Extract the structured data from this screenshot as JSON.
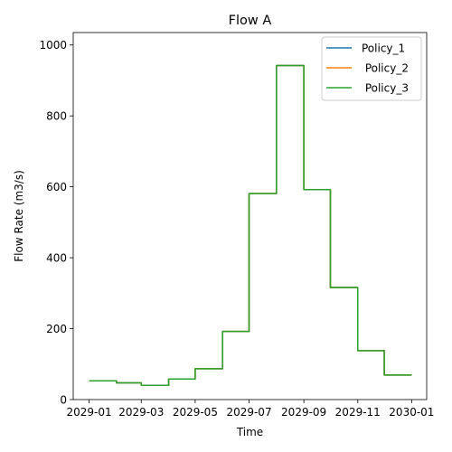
{
  "chart_data": {
    "type": "line",
    "title": "Flow A",
    "xlabel": "Time",
    "ylabel": "Flow Rate (m3/s)",
    "xlim": [
      "2028-12-14",
      "2030-01-18"
    ],
    "ylim": [
      0,
      1035
    ],
    "xticks": [
      {
        "date": "2029-01-01",
        "label": "2029-01"
      },
      {
        "date": "2029-03-01",
        "label": "2029-03"
      },
      {
        "date": "2029-05-01",
        "label": "2029-05"
      },
      {
        "date": "2029-07-01",
        "label": "2029-07"
      },
      {
        "date": "2029-09-01",
        "label": "2029-09"
      },
      {
        "date": "2029-11-01",
        "label": "2029-11"
      },
      {
        "date": "2030-01-01",
        "label": "2030-01"
      }
    ],
    "yticks": [
      0,
      200,
      400,
      600,
      800,
      1000
    ],
    "legend_position": "top-right",
    "grid": false,
    "x": [
      "2029-01-01",
      "2029-02-01",
      "2029-03-01",
      "2029-04-01",
      "2029-05-01",
      "2029-06-01",
      "2029-07-01",
      "2029-08-01",
      "2029-09-01",
      "2029-10-01",
      "2029-11-01",
      "2029-12-01",
      "2030-01-01"
    ],
    "series": [
      {
        "name": "Policy_1",
        "color": "#1f77b4",
        "values": [
          53,
          47,
          40,
          58,
          87,
          192,
          581,
          942,
          592,
          316,
          138,
          69,
          69
        ]
      },
      {
        "name": " Policy_2",
        "color": "#ff7f0e",
        "values": [
          53,
          47,
          40,
          58,
          87,
          192,
          581,
          942,
          592,
          316,
          138,
          69,
          69
        ]
      },
      {
        "name": " Policy_3",
        "color": "#2ca02c",
        "values": [
          53,
          47,
          40,
          58,
          87,
          192,
          581,
          942,
          592,
          316,
          138,
          69,
          69
        ]
      }
    ]
  }
}
